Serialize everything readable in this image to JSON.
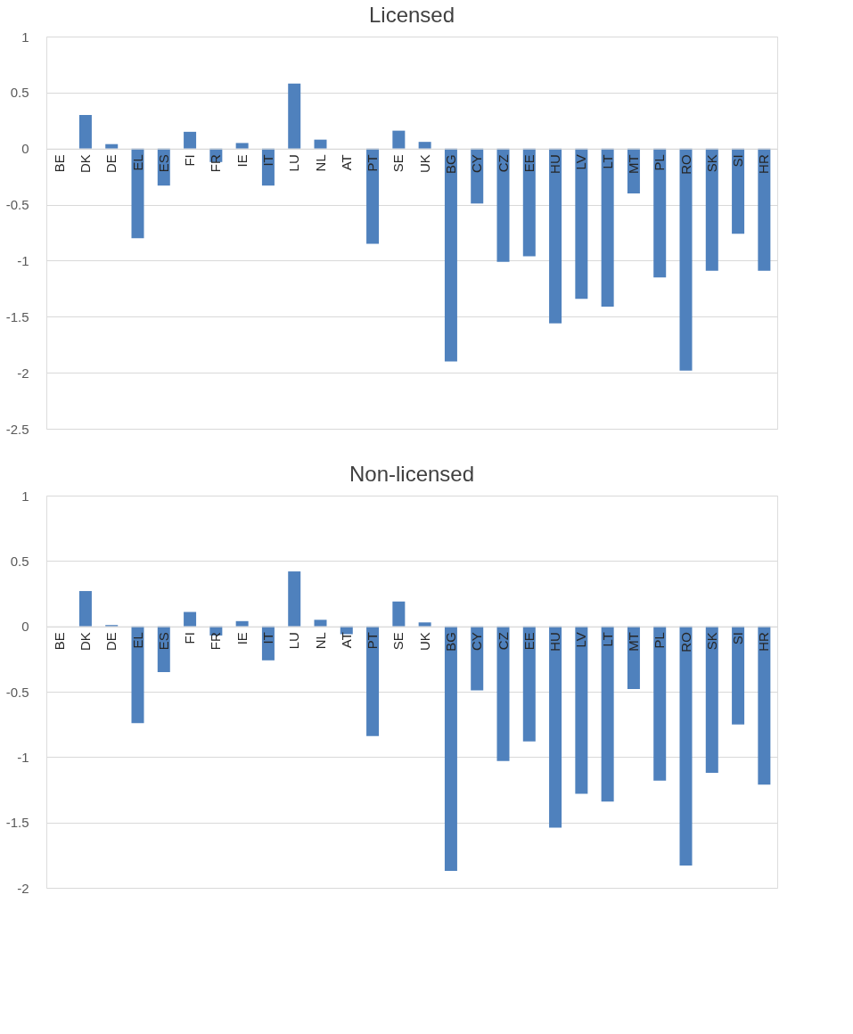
{
  "chart_data": [
    {
      "type": "bar",
      "title": "Licensed",
      "categories": [
        "BE",
        "DK",
        "DE",
        "EL",
        "ES",
        "FI",
        "FR",
        "IE",
        "IT",
        "LU",
        "NL",
        "AT",
        "PT",
        "SE",
        "UK",
        "BG",
        "CY",
        "CZ",
        "EE",
        "HU",
        "LV",
        "LT",
        "MT",
        "PL",
        "RO",
        "SK",
        "SI",
        "HR"
      ],
      "values": [
        0,
        0.3,
        0.04,
        -0.8,
        -0.33,
        0.15,
        -0.12,
        0.05,
        -0.33,
        0.58,
        0.08,
        0,
        -0.85,
        0.16,
        0.06,
        -1.9,
        -0.49,
        -1.01,
        -0.96,
        -1.56,
        -1.34,
        -1.41,
        -0.4,
        -1.15,
        -1.98,
        -1.09,
        -0.76,
        -1.09
      ],
      "color": "#4f81bd",
      "ylim": [
        -2.5,
        1
      ],
      "yticks": [
        -2.5,
        -2,
        -1.5,
        -1,
        -0.5,
        0,
        0.5,
        1
      ],
      "grid": "y"
    },
    {
      "type": "bar",
      "title": "Non-licensed",
      "categories": [
        "BE",
        "DK",
        "DE",
        "EL",
        "ES",
        "FI",
        "FR",
        "IE",
        "IT",
        "LU",
        "NL",
        "AT",
        "PT",
        "SE",
        "UK",
        "BG",
        "CY",
        "CZ",
        "EE",
        "HU",
        "LV",
        "LT",
        "MT",
        "PL",
        "RO",
        "SK",
        "SI",
        "HR"
      ],
      "values": [
        0,
        0.27,
        0.01,
        -0.74,
        -0.35,
        0.11,
        -0.07,
        0.04,
        -0.26,
        0.42,
        0.05,
        -0.06,
        -0.84,
        0.19,
        0.03,
        -1.87,
        -0.49,
        -1.03,
        -0.88,
        -1.54,
        -1.28,
        -1.34,
        -0.48,
        -1.18,
        -1.83,
        -1.12,
        -0.75,
        -1.21
      ],
      "color": "#4f81bd",
      "ylim": [
        -2,
        1
      ],
      "yticks": [
        -2,
        -1.5,
        -1,
        -0.5,
        0,
        0.5,
        1
      ],
      "grid": "y"
    }
  ]
}
